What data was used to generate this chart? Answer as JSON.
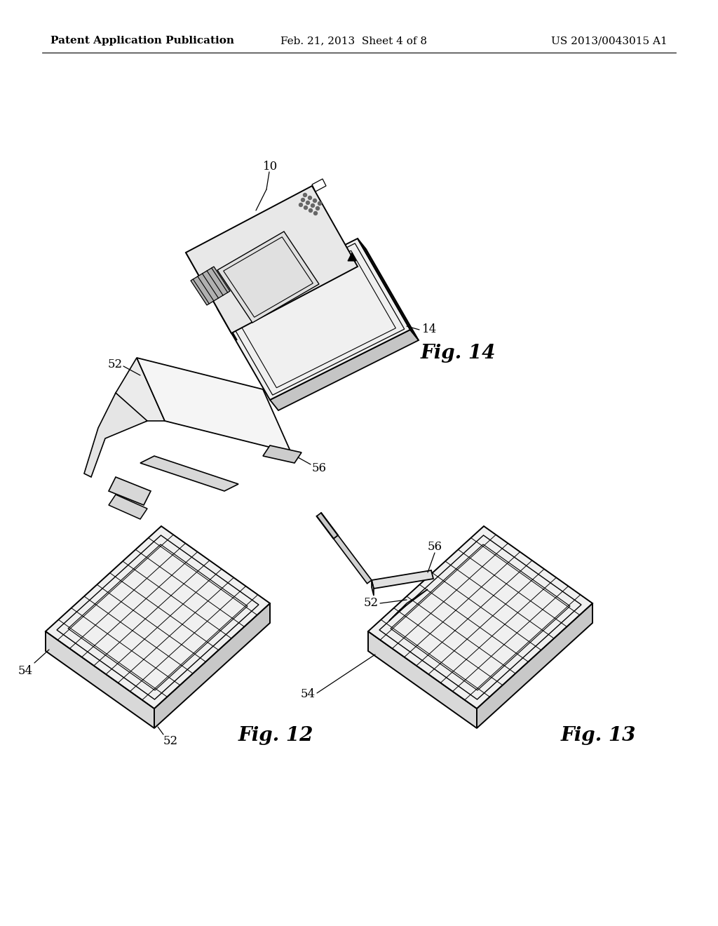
{
  "background_color": "#ffffff",
  "header_left": "Patent Application Publication",
  "header_center": "Feb. 21, 2013  Sheet 4 of 8",
  "header_right": "US 2013/0043015 A1",
  "header_fontsize": 11,
  "fig12_label": "Fig. 12",
  "fig13_label": "Fig. 13",
  "fig14_label": "Fig. 14",
  "label_fontsize": 20,
  "ref_fontsize": 12,
  "line_color": "#000000",
  "line_width": 1.5
}
